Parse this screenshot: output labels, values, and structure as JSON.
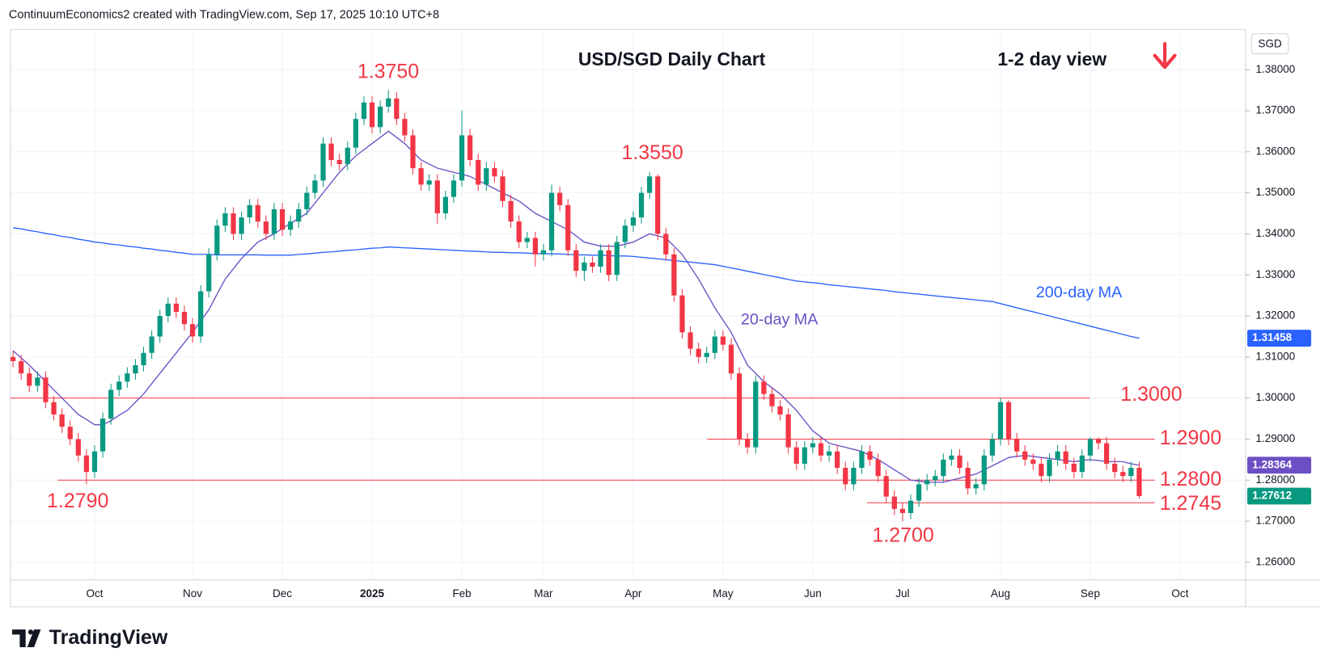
{
  "chart_data": {
    "type": "candlestick",
    "header": "ContinuumEconomics2 created with TradingView.com, Sep 17, 2025 10:10 UTC+8",
    "title": "USD/SGD Daily Chart",
    "subtitle": "1-2 day view",
    "currency": "SGD",
    "brand": "TradingView",
    "up_color": "#089981",
    "down_color": "#f23645",
    "level_color": "#f23645",
    "grid": true,
    "y_axis": "right",
    "ylim": [
      1.2557,
      1.3898
    ],
    "yticks": [
      {
        "value": 1.26,
        "label": "1.26000"
      },
      {
        "value": 1.27,
        "label": "1.27000"
      },
      {
        "value": 1.28,
        "label": "1.28000"
      },
      {
        "value": 1.29,
        "label": "1.29000"
      },
      {
        "value": 1.3,
        "label": "1.30000"
      },
      {
        "value": 1.31,
        "label": "1.31000"
      },
      {
        "value": 1.32,
        "label": "1.32000"
      },
      {
        "value": 1.33,
        "label": "1.33000"
      },
      {
        "value": 1.34,
        "label": "1.34000"
      },
      {
        "value": 1.35,
        "label": "1.35000"
      },
      {
        "value": 1.36,
        "label": "1.36000"
      },
      {
        "value": 1.37,
        "label": "1.37000"
      },
      {
        "value": 1.38,
        "label": "1.38000"
      }
    ],
    "categories": [
      null,
      null,
      null,
      null,
      null,
      null,
      null,
      null,
      null,
      null,
      "Oct",
      null,
      null,
      null,
      null,
      null,
      null,
      null,
      null,
      null,
      null,
      null,
      "Nov",
      null,
      null,
      null,
      null,
      null,
      null,
      null,
      null,
      null,
      null,
      "Dec",
      null,
      null,
      null,
      null,
      null,
      null,
      null,
      null,
      null,
      null,
      "2025",
      null,
      null,
      null,
      null,
      null,
      null,
      null,
      null,
      null,
      null,
      "Feb",
      null,
      null,
      null,
      null,
      null,
      null,
      null,
      null,
      null,
      "Mar",
      null,
      null,
      null,
      null,
      null,
      null,
      null,
      null,
      null,
      null,
      "Apr",
      null,
      null,
      null,
      null,
      null,
      null,
      null,
      null,
      null,
      null,
      "May",
      null,
      null,
      null,
      null,
      null,
      null,
      null,
      null,
      null,
      null,
      "Jun",
      null,
      null,
      null,
      null,
      null,
      null,
      null,
      null,
      null,
      null,
      "Jul",
      null,
      null,
      null,
      null,
      null,
      null,
      null,
      null,
      null,
      null,
      null,
      "Aug",
      null,
      null,
      null,
      null,
      null,
      null,
      null,
      null,
      null,
      null,
      "Sep",
      null,
      null,
      null,
      null,
      null,
      null,
      null,
      null,
      null,
      null,
      "Oct"
    ],
    "open": [
      1.31,
      1.309,
      1.306,
      1.303,
      1.305,
      1.299,
      1.296,
      1.293,
      1.29,
      1.286,
      1.282,
      1.287,
      1.295,
      1.302,
      1.304,
      1.306,
      1.308,
      1.311,
      1.315,
      1.32,
      1.323,
      1.321,
      1.318,
      1.315,
      1.326,
      1.335,
      1.342,
      1.345,
      1.34,
      1.344,
      1.347,
      1.343,
      1.34,
      1.346,
      1.341,
      1.343,
      1.346,
      1.35,
      1.353,
      1.362,
      1.358,
      1.357,
      1.361,
      1.368,
      1.372,
      1.366,
      1.371,
      1.373,
      1.368,
      1.364,
      1.356,
      1.352,
      1.353,
      1.345,
      1.349,
      1.353,
      1.364,
      1.358,
      1.352,
      1.356,
      1.354,
      1.348,
      1.343,
      1.338,
      1.339,
      1.335,
      1.336,
      1.35,
      1.347,
      1.336,
      1.331,
      1.333,
      1.332,
      1.336,
      1.33,
      1.338,
      1.342,
      1.344,
      1.35,
      1.354,
      1.34,
      1.335,
      1.325,
      1.316,
      1.312,
      1.31,
      1.311,
      1.315,
      1.313,
      1.306,
      1.29,
      1.288,
      1.304,
      1.301,
      1.298,
      1.296,
      1.288,
      1.284,
      1.288,
      1.289,
      1.286,
      1.287,
      1.283,
      1.279,
      1.283,
      1.287,
      1.285,
      1.281,
      1.276,
      1.273,
      1.272,
      1.275,
      1.279,
      1.28,
      1.281,
      1.285,
      1.286,
      1.283,
      1.278,
      1.279,
      1.286,
      1.29,
      1.299,
      1.29,
      1.287,
      1.285,
      1.284,
      1.281,
      1.285,
      1.287,
      1.284,
      1.282,
      1.286,
      1.29,
      1.289,
      1.284,
      1.282,
      1.281,
      1.283,
      null,
      null,
      null,
      null,
      null
    ],
    "high": [
      1.3115,
      1.3105,
      1.3075,
      1.3065,
      1.3065,
      1.3005,
      1.2975,
      1.2945,
      1.2915,
      1.2875,
      1.2885,
      1.2965,
      1.3035,
      1.3055,
      1.3075,
      1.3095,
      1.3125,
      1.3165,
      1.3215,
      1.3245,
      1.3245,
      1.3225,
      1.3195,
      1.3275,
      1.3365,
      1.3435,
      1.3465,
      1.3465,
      1.3455,
      1.3485,
      1.3485,
      1.3445,
      1.3475,
      1.3475,
      1.3445,
      1.3475,
      1.3515,
      1.3545,
      1.3635,
      1.3635,
      1.3595,
      1.3625,
      1.3695,
      1.3735,
      1.3735,
      1.3725,
      1.375,
      1.3745,
      1.3695,
      1.3655,
      1.3575,
      1.3545,
      1.3545,
      1.3505,
      1.3545,
      1.37,
      1.3655,
      1.3595,
      1.3575,
      1.3575,
      1.3555,
      1.3495,
      1.3445,
      1.3405,
      1.3405,
      1.3375,
      1.352,
      1.3515,
      1.3485,
      1.3375,
      1.3345,
      1.3345,
      1.3375,
      1.3375,
      1.3395,
      1.3435,
      1.3455,
      1.3515,
      1.355,
      1.3545,
      1.3415,
      1.3365,
      1.3265,
      1.3175,
      1.3135,
      1.3125,
      1.3165,
      1.3165,
      1.3145,
      1.3075,
      1.2915,
      1.3055,
      1.3055,
      1.3025,
      1.2995,
      1.2975,
      1.2895,
      1.2895,
      1.2905,
      1.2905,
      1.2885,
      1.2885,
      1.2845,
      1.2845,
      1.2885,
      1.2885,
      1.2865,
      1.2825,
      1.2775,
      1.2745,
      1.2765,
      1.2805,
      1.2815,
      1.2825,
      1.2865,
      1.2875,
      1.2875,
      1.2845,
      1.2805,
      1.2875,
      1.2915,
      1.3,
      1.2995,
      1.2915,
      1.2885,
      1.2865,
      1.2855,
      1.2865,
      1.2885,
      1.2885,
      1.2855,
      1.2875,
      1.2905,
      1.2905,
      1.2905,
      1.2855,
      1.2835,
      1.2845,
      1.2845,
      null,
      null,
      null,
      null,
      null
    ],
    "low": [
      1.3075,
      1.3045,
      1.3015,
      1.3015,
      1.2975,
      1.2945,
      1.2915,
      1.2885,
      1.2845,
      1.279,
      1.2805,
      1.2855,
      1.2935,
      1.3005,
      1.3025,
      1.3045,
      1.3065,
      1.3095,
      1.3135,
      1.3185,
      1.3195,
      1.3165,
      1.3135,
      1.3135,
      1.3245,
      1.3335,
      1.3405,
      1.3385,
      1.3385,
      1.3425,
      1.3415,
      1.3385,
      1.3385,
      1.3395,
      1.3395,
      1.3415,
      1.3445,
      1.3485,
      1.3515,
      1.3565,
      1.3555,
      1.3555,
      1.3595,
      1.3665,
      1.3645,
      1.3645,
      1.3695,
      1.3665,
      1.3625,
      1.3545,
      1.3505,
      1.3505,
      1.3425,
      1.3435,
      1.3475,
      1.3515,
      1.3565,
      1.3505,
      1.3505,
      1.3525,
      1.3465,
      1.3415,
      1.3365,
      1.3365,
      1.332,
      1.3335,
      1.3345,
      1.3455,
      1.3345,
      1.3295,
      1.3285,
      1.3305,
      1.3305,
      1.3285,
      1.3285,
      1.3365,
      1.3405,
      1.3425,
      1.3485,
      1.3385,
      1.3335,
      1.3235,
      1.3145,
      1.3105,
      1.3085,
      1.3085,
      1.3095,
      1.3115,
      1.3045,
      1.2885,
      1.2865,
      1.2865,
      1.2995,
      1.2965,
      1.2945,
      1.2865,
      1.2825,
      1.2825,
      1.2865,
      1.2845,
      1.2845,
      1.2815,
      1.2775,
      1.2775,
      1.2815,
      1.2835,
      1.2795,
      1.2745,
      1.2715,
      1.27,
      1.2705,
      1.2735,
      1.2775,
      1.2785,
      1.2795,
      1.2835,
      1.2815,
      1.2765,
      1.2765,
      1.2775,
      1.2845,
      1.2885,
      1.2885,
      1.2855,
      1.2835,
      1.2825,
      1.2795,
      1.2795,
      1.2835,
      1.2825,
      1.2805,
      1.2805,
      1.2845,
      1.2875,
      1.2825,
      1.2805,
      1.2795,
      1.2795,
      1.2755,
      null,
      null,
      null,
      null,
      null
    ],
    "close": [
      1.309,
      1.306,
      1.303,
      1.305,
      1.299,
      1.296,
      1.293,
      1.29,
      1.286,
      1.282,
      1.287,
      1.295,
      1.302,
      1.304,
      1.306,
      1.308,
      1.311,
      1.315,
      1.32,
      1.323,
      1.321,
      1.318,
      1.315,
      1.326,
      1.335,
      1.342,
      1.345,
      1.34,
      1.344,
      1.347,
      1.343,
      1.34,
      1.346,
      1.341,
      1.343,
      1.346,
      1.35,
      1.353,
      1.362,
      1.358,
      1.357,
      1.361,
      1.368,
      1.372,
      1.366,
      1.371,
      1.373,
      1.368,
      1.364,
      1.356,
      1.352,
      1.353,
      1.345,
      1.349,
      1.353,
      1.364,
      1.358,
      1.352,
      1.356,
      1.354,
      1.348,
      1.343,
      1.338,
      1.339,
      1.335,
      1.336,
      1.35,
      1.347,
      1.336,
      1.331,
      1.333,
      1.332,
      1.336,
      1.33,
      1.338,
      1.342,
      1.344,
      1.35,
      1.354,
      1.34,
      1.335,
      1.325,
      1.316,
      1.312,
      1.31,
      1.311,
      1.315,
      1.313,
      1.306,
      1.29,
      1.288,
      1.304,
      1.301,
      1.298,
      1.296,
      1.288,
      1.284,
      1.288,
      1.289,
      1.286,
      1.287,
      1.283,
      1.279,
      1.283,
      1.287,
      1.285,
      1.281,
      1.276,
      1.273,
      1.272,
      1.275,
      1.279,
      1.28,
      1.281,
      1.285,
      1.286,
      1.283,
      1.278,
      1.279,
      1.286,
      1.29,
      1.299,
      1.29,
      1.287,
      1.285,
      1.284,
      1.281,
      1.285,
      1.287,
      1.284,
      1.282,
      1.286,
      1.29,
      1.289,
      1.284,
      1.282,
      1.281,
      1.283,
      1.27612,
      null,
      null,
      null,
      null,
      null
    ],
    "series": [
      {
        "name": "20-day MA",
        "color": "#6c4fc4",
        "values": [
          1.3115,
          1.3098,
          1.308,
          1.306,
          1.304,
          1.302,
          1.3,
          1.298,
          1.296,
          1.2948,
          1.2935,
          1.2935,
          1.2945,
          1.2958,
          1.297,
          1.299,
          1.301,
          1.3035,
          1.306,
          1.3085,
          1.311,
          1.3135,
          1.316,
          1.3188,
          1.3215,
          1.3253,
          1.329,
          1.3315,
          1.334,
          1.336,
          1.338,
          1.339,
          1.34,
          1.3413,
          1.3425,
          1.3438,
          1.345,
          1.3475,
          1.35,
          1.3525,
          1.355,
          1.357,
          1.359,
          1.3605,
          1.362,
          1.3635,
          1.365,
          1.3635,
          1.362,
          1.36,
          1.358,
          1.357,
          1.356,
          1.3555,
          1.355,
          1.3545,
          1.354,
          1.353,
          1.352,
          1.351,
          1.35,
          1.349,
          1.348,
          1.3465,
          1.345,
          1.344,
          1.343,
          1.342,
          1.341,
          1.3395,
          1.338,
          1.3375,
          1.337,
          1.337,
          1.337,
          1.3375,
          1.338,
          1.339,
          1.34,
          1.3395,
          1.339,
          1.337,
          1.335,
          1.332,
          1.329,
          1.3255,
          1.322,
          1.319,
          1.316,
          1.312,
          1.308,
          1.306,
          1.304,
          1.3025,
          1.301,
          1.299,
          1.297,
          1.2945,
          1.292,
          1.2905,
          1.289,
          1.2885,
          1.288,
          1.2875,
          1.287,
          1.286,
          1.285,
          1.2838,
          1.2825,
          1.2813,
          1.28,
          1.2798,
          1.2795,
          1.2795,
          1.2795,
          1.28,
          1.2805,
          1.281,
          1.2815,
          1.2825,
          1.2835,
          1.2845,
          1.2855,
          1.2858,
          1.286,
          1.2858,
          1.2855,
          1.2853,
          1.285,
          1.2848,
          1.2845,
          1.2848,
          1.285,
          1.2848,
          1.2845,
          1.2845,
          1.2845,
          1.284,
          1.28364,
          null,
          null,
          null,
          null,
          null
        ]
      },
      {
        "name": "200-day MA",
        "color": "#2962ff",
        "values": [
          1.3415,
          1.3412,
          1.3408,
          1.3405,
          1.3401,
          1.3398,
          1.3394,
          1.3391,
          1.3387,
          1.3384,
          1.338,
          1.3378,
          1.3375,
          1.3373,
          1.337,
          1.3368,
          1.3365,
          1.3363,
          1.336,
          1.3358,
          1.3355,
          1.3353,
          1.335,
          1.335,
          1.335,
          1.3349,
          1.3349,
          1.3349,
          1.3349,
          1.3349,
          1.3349,
          1.3348,
          1.3348,
          1.3348,
          1.3348,
          1.335,
          1.3351,
          1.3353,
          1.3355,
          1.3356,
          1.3358,
          1.336,
          1.3361,
          1.3363,
          1.3365,
          1.3366,
          1.3368,
          1.3367,
          1.3366,
          1.3365,
          1.3364,
          1.3363,
          1.3362,
          1.3361,
          1.336,
          1.3359,
          1.3358,
          1.3357,
          1.3356,
          1.3355,
          1.3355,
          1.3354,
          1.3354,
          1.3353,
          1.3352,
          1.3352,
          1.3351,
          1.3351,
          1.335,
          1.3349,
          1.3349,
          1.3348,
          1.3348,
          1.3347,
          1.3346,
          1.3346,
          1.3345,
          1.3343,
          1.3341,
          1.3339,
          1.3337,
          1.3335,
          1.3333,
          1.3331,
          1.3329,
          1.3327,
          1.3325,
          1.3321,
          1.3317,
          1.3313,
          1.3309,
          1.3305,
          1.3301,
          1.3297,
          1.3293,
          1.3289,
          1.3285,
          1.3283,
          1.3281,
          1.3279,
          1.3276,
          1.3274,
          1.3272,
          1.327,
          1.3268,
          1.3266,
          1.3264,
          1.3262,
          1.3259,
          1.3257,
          1.3255,
          1.3253,
          1.3251,
          1.3249,
          1.3247,
          1.3245,
          1.3243,
          1.3241,
          1.3239,
          1.3237,
          1.3235,
          1.323,
          1.3225,
          1.322,
          1.3215,
          1.321,
          1.3205,
          1.32,
          1.3195,
          1.319,
          1.3185,
          1.318,
          1.3175,
          1.317,
          1.3165,
          1.316,
          1.3155,
          1.315,
          1.31458,
          null,
          null,
          null,
          null,
          null
        ]
      }
    ],
    "levels": [
      {
        "label": "1.3750",
        "value": 1.375,
        "line": false
      },
      {
        "label": "1.3550",
        "value": 1.355,
        "line": false
      },
      {
        "label": "1.3000",
        "value": 1.3,
        "line": true
      },
      {
        "label": "1.2900",
        "value": 1.29,
        "line": true
      },
      {
        "label": "1.2800",
        "value": 1.28,
        "line": true
      },
      {
        "label": "1.2745",
        "value": 1.2745,
        "line": true
      },
      {
        "label": "1.2700",
        "value": 1.27,
        "line": false
      },
      {
        "label": "1.2790",
        "value": 1.279,
        "line": false
      }
    ]
  }
}
